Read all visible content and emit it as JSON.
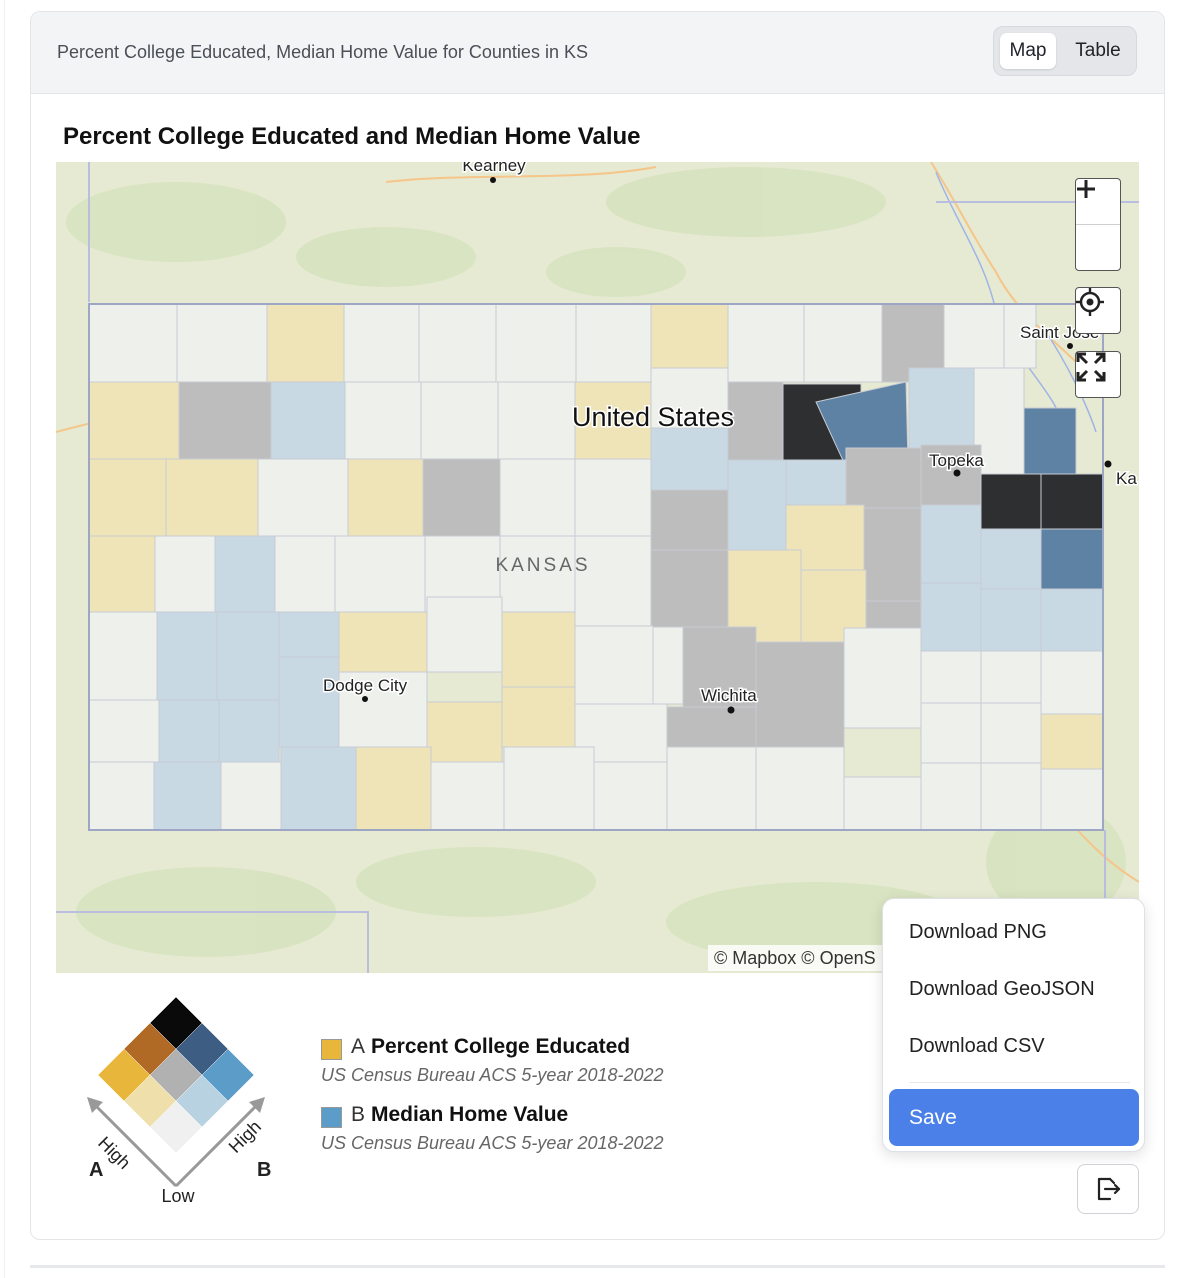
{
  "header": {
    "title": "Percent College Educated, Median Home Value for Counties in KS",
    "toggle": {
      "map_label": "Map",
      "table_label": "Table",
      "selected": "Map"
    }
  },
  "visualization": {
    "title": "Percent College Educated and Median Home Value",
    "map": {
      "place_labels": {
        "country": "United States",
        "state": "KANSAS",
        "cities": [
          "Kearney",
          "Saint Joseph",
          "Topeka",
          "Dodge City",
          "Wichita",
          "Kansas City"
        ],
        "city_display": [
          "Kearney",
          "Saint Jose",
          "Topeka",
          "Dodge City",
          "Wichita",
          "Ka"
        ]
      },
      "attribution": "© Mapbox © OpenS",
      "controls": {
        "zoom_in_icon": "plus-icon",
        "zoom_out_icon": "minus-icon",
        "locate_icon": "crosshair-icon",
        "fullscreen_icon": "expand-icon"
      }
    },
    "legend": {
      "variable_a": {
        "letter": "A",
        "name": "Percent College Educated",
        "source": "US Census Bureau ACS 5-year 2018-2022",
        "color": "#e8b63a"
      },
      "variable_b": {
        "letter": "B",
        "name": "Median Home Value",
        "source": "US Census Bureau ACS 5-year 2018-2022",
        "color": "#5b9cc9"
      },
      "axis_a_label": "A",
      "axis_b_label": "B",
      "high_a_label": "High",
      "high_b_label": "High",
      "low_label": "Low",
      "bivariate_colors": {
        "low_low": "#f0f0f0",
        "a2_b1": "#efdfaa",
        "a3_b1": "#e8b63a",
        "a1_b2": "#b8d2e2",
        "a2_b2": "#b1b1b1",
        "a3_b2": "#b06a26",
        "a1_b3": "#5b9cc9",
        "a2_b3": "#3d5d83",
        "high_high": "#0a0a0a"
      }
    }
  },
  "download_menu": {
    "items": [
      "Download PNG",
      "Download GeoJSON",
      "Download CSV"
    ],
    "save_label": "Save",
    "export_icon": "export-icon"
  }
}
